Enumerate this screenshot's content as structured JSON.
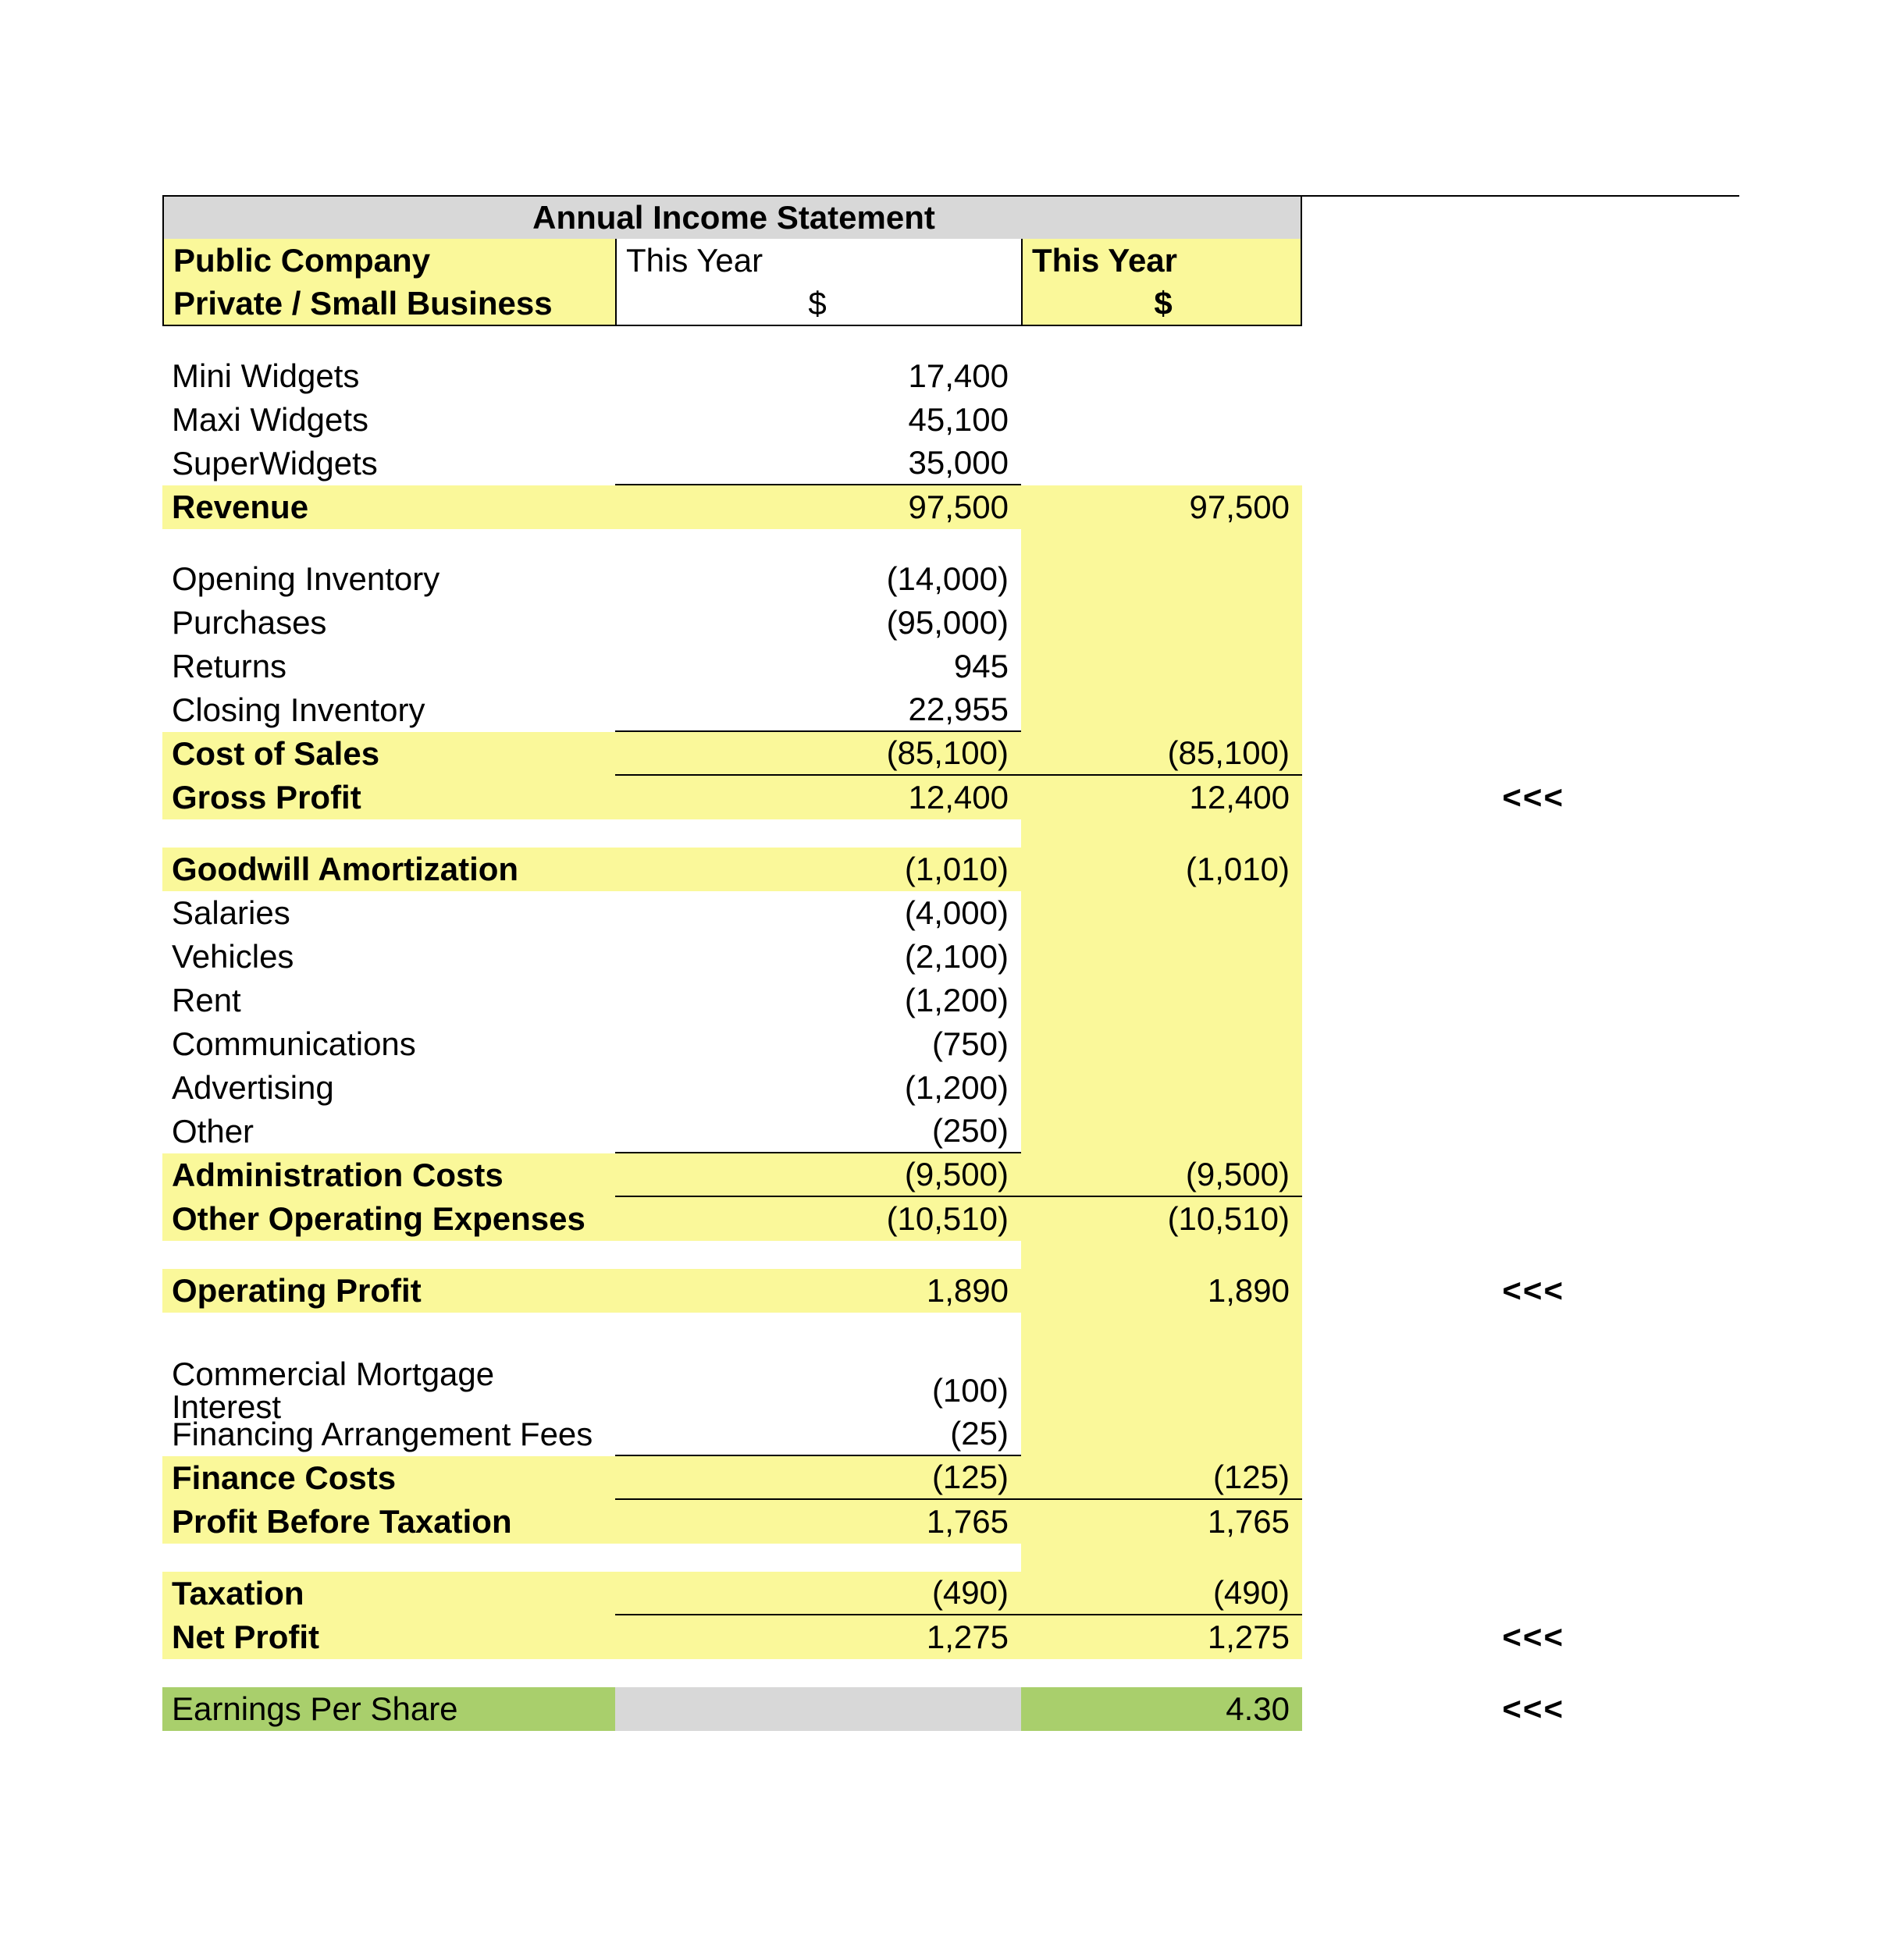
{
  "colors": {
    "highlight_yellow": "#faf89a",
    "header_grey": "#d8d8d8",
    "eps_green": "#a9cf6c",
    "border": "#000000",
    "text": "#000000",
    "background": "#ffffff"
  },
  "typography": {
    "font_family": "Arial",
    "base_fontsize_pt": 32,
    "bold_weight": 700
  },
  "marker": "<<<",
  "header": {
    "title": "Annual Income Statement",
    "row1_colA": "Public Company",
    "row1_colB": "This Year",
    "row1_colC": "This Year",
    "row2_colA": "Private / Small Business",
    "row2_colB": "$",
    "row2_colC": "$"
  },
  "rows": [
    {
      "type": "blank"
    },
    {
      "type": "line",
      "label": "Mini Widgets",
      "col1": "17,400",
      "col2": ""
    },
    {
      "type": "line",
      "label": "Maxi Widgets",
      "col1": "45,100",
      "col2": ""
    },
    {
      "type": "line",
      "label": "SuperWidgets",
      "col1": "35,000",
      "col2": "",
      "col1_border": "bb"
    },
    {
      "type": "total",
      "label": "Revenue",
      "col1": "97,500",
      "col2": "97,500",
      "hilite": "ABC"
    },
    {
      "type": "blank",
      "hilite": "C"
    },
    {
      "type": "line",
      "label": "Opening Inventory",
      "col1": "(14,000)",
      "col2": "",
      "hiliteC": true
    },
    {
      "type": "line",
      "label": "Purchases",
      "col1": "(95,000)",
      "col2": "",
      "hiliteC": true
    },
    {
      "type": "line",
      "label": "Returns",
      "col1": "945",
      "col2": "",
      "hiliteC": true
    },
    {
      "type": "line",
      "label": "Closing Inventory",
      "col1": "22,955",
      "col2": "",
      "col1_border": "bb",
      "hiliteC": true
    },
    {
      "type": "total",
      "label": "Cost of Sales",
      "col1": "(85,100)",
      "col2": "(85,100)",
      "hilite": "ABC",
      "col1_border": "bb",
      "col2_border": "bb"
    },
    {
      "type": "total",
      "label": "Gross Profit",
      "col1": "12,400",
      "col2": "12,400",
      "hilite": "ABC",
      "marker": true
    },
    {
      "type": "blank",
      "hilite": "C"
    },
    {
      "type": "total",
      "label": "Goodwill Amortization",
      "col1": "(1,010)",
      "col2": "(1,010)",
      "hilite": "ABC"
    },
    {
      "type": "line",
      "label": "Salaries",
      "col1": "(4,000)",
      "col2": "",
      "hiliteC": true
    },
    {
      "type": "line",
      "label": "Vehicles",
      "col1": "(2,100)",
      "col2": "",
      "hiliteC": true
    },
    {
      "type": "line",
      "label": "Rent",
      "col1": "(1,200)",
      "col2": "",
      "hiliteC": true
    },
    {
      "type": "line",
      "label": "Communications",
      "col1": "(750)",
      "col2": "",
      "hiliteC": true
    },
    {
      "type": "line",
      "label": "Advertising",
      "col1": "(1,200)",
      "col2": "",
      "hiliteC": true
    },
    {
      "type": "line",
      "label": "Other",
      "col1": "(250)",
      "col2": "",
      "col1_border": "bb",
      "hiliteC": true
    },
    {
      "type": "total",
      "label": "Administration Costs",
      "col1": "(9,500)",
      "col2": "(9,500)",
      "hilite": "ABC",
      "col1_border": "bb",
      "col2_border": "bb"
    },
    {
      "type": "total",
      "label": "Other Operating Expenses",
      "col1": "(10,510)",
      "col2": "(10,510)",
      "hilite": "ABC"
    },
    {
      "type": "blank",
      "hilite": "C"
    },
    {
      "type": "total",
      "label": "Operating Profit",
      "col1": "1,890",
      "col2": "1,890",
      "hilite": "ABC",
      "marker": true
    },
    {
      "type": "blank",
      "hilite": "C"
    },
    {
      "type": "blank",
      "hilite": "C"
    },
    {
      "type": "line",
      "label": "Commercial Mortgage  Interest",
      "col1": "(100)",
      "col2": "",
      "hiliteC": true
    },
    {
      "type": "line",
      "label": "Financing Arrangement Fees",
      "col1": "(25)",
      "col2": "",
      "col1_border": "bb",
      "hiliteC": true
    },
    {
      "type": "total",
      "label": "Finance Costs",
      "col1": "(125)",
      "col2": "(125)",
      "hilite": "ABC",
      "col1_border": "bb",
      "col2_border": "bb"
    },
    {
      "type": "total",
      "label": "Profit Before Taxation",
      "col1": "1,765",
      "col2": "1,765",
      "hilite": "ABC"
    },
    {
      "type": "blank",
      "hilite": "C"
    },
    {
      "type": "total",
      "label": "Taxation",
      "col1": "(490)",
      "col2": "(490)",
      "hilite": "ABC",
      "col1_border": "bb",
      "col2_border": "bb"
    },
    {
      "type": "total",
      "label": "Net Profit",
      "col1": "1,275",
      "col2": "1,275",
      "hilite": "ABC",
      "marker": true
    },
    {
      "type": "blank"
    },
    {
      "type": "eps",
      "label": "Earnings Per Share",
      "col1": "",
      "col2": "4.30",
      "marker": true
    }
  ]
}
